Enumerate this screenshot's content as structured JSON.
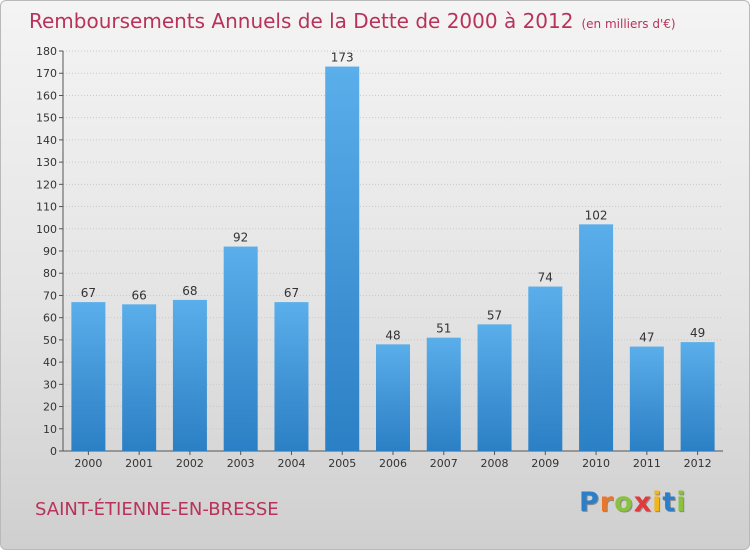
{
  "title": "Remboursements Annuels de la Dette de 2000 à 2012",
  "unit": "(en milliers d'€)",
  "commune": "SAINT-ÉTIENNE-EN-BRESSE",
  "logo": {
    "letters": [
      "P",
      "r",
      "o",
      "x",
      "i",
      "t",
      "i"
    ],
    "colors": [
      "#2c7ec9",
      "#e9762b",
      "#8ac23f",
      "#e23a3a",
      "#f2b51a",
      "#2c7ec9",
      "#8ac23f"
    ]
  },
  "colors": {
    "bar_light": "#5aaeea",
    "bar_dark": "#2b7fc4",
    "text_accent": "#b8325a",
    "grid": "#c9c9c9",
    "axis": "#555555"
  },
  "chart_data": {
    "type": "bar",
    "categories": [
      "2000",
      "2001",
      "2002",
      "2003",
      "2004",
      "2005",
      "2006",
      "2007",
      "2008",
      "2009",
      "2010",
      "2011",
      "2012"
    ],
    "values": [
      67,
      66,
      68,
      92,
      67,
      173,
      48,
      51,
      57,
      74,
      102,
      47,
      49
    ],
    "ylim": [
      0,
      180
    ],
    "yticks": [
      0,
      10,
      20,
      30,
      40,
      50,
      60,
      70,
      80,
      90,
      100,
      110,
      120,
      130,
      140,
      150,
      160,
      170,
      180
    ],
    "grid": true,
    "data_labels": true
  }
}
